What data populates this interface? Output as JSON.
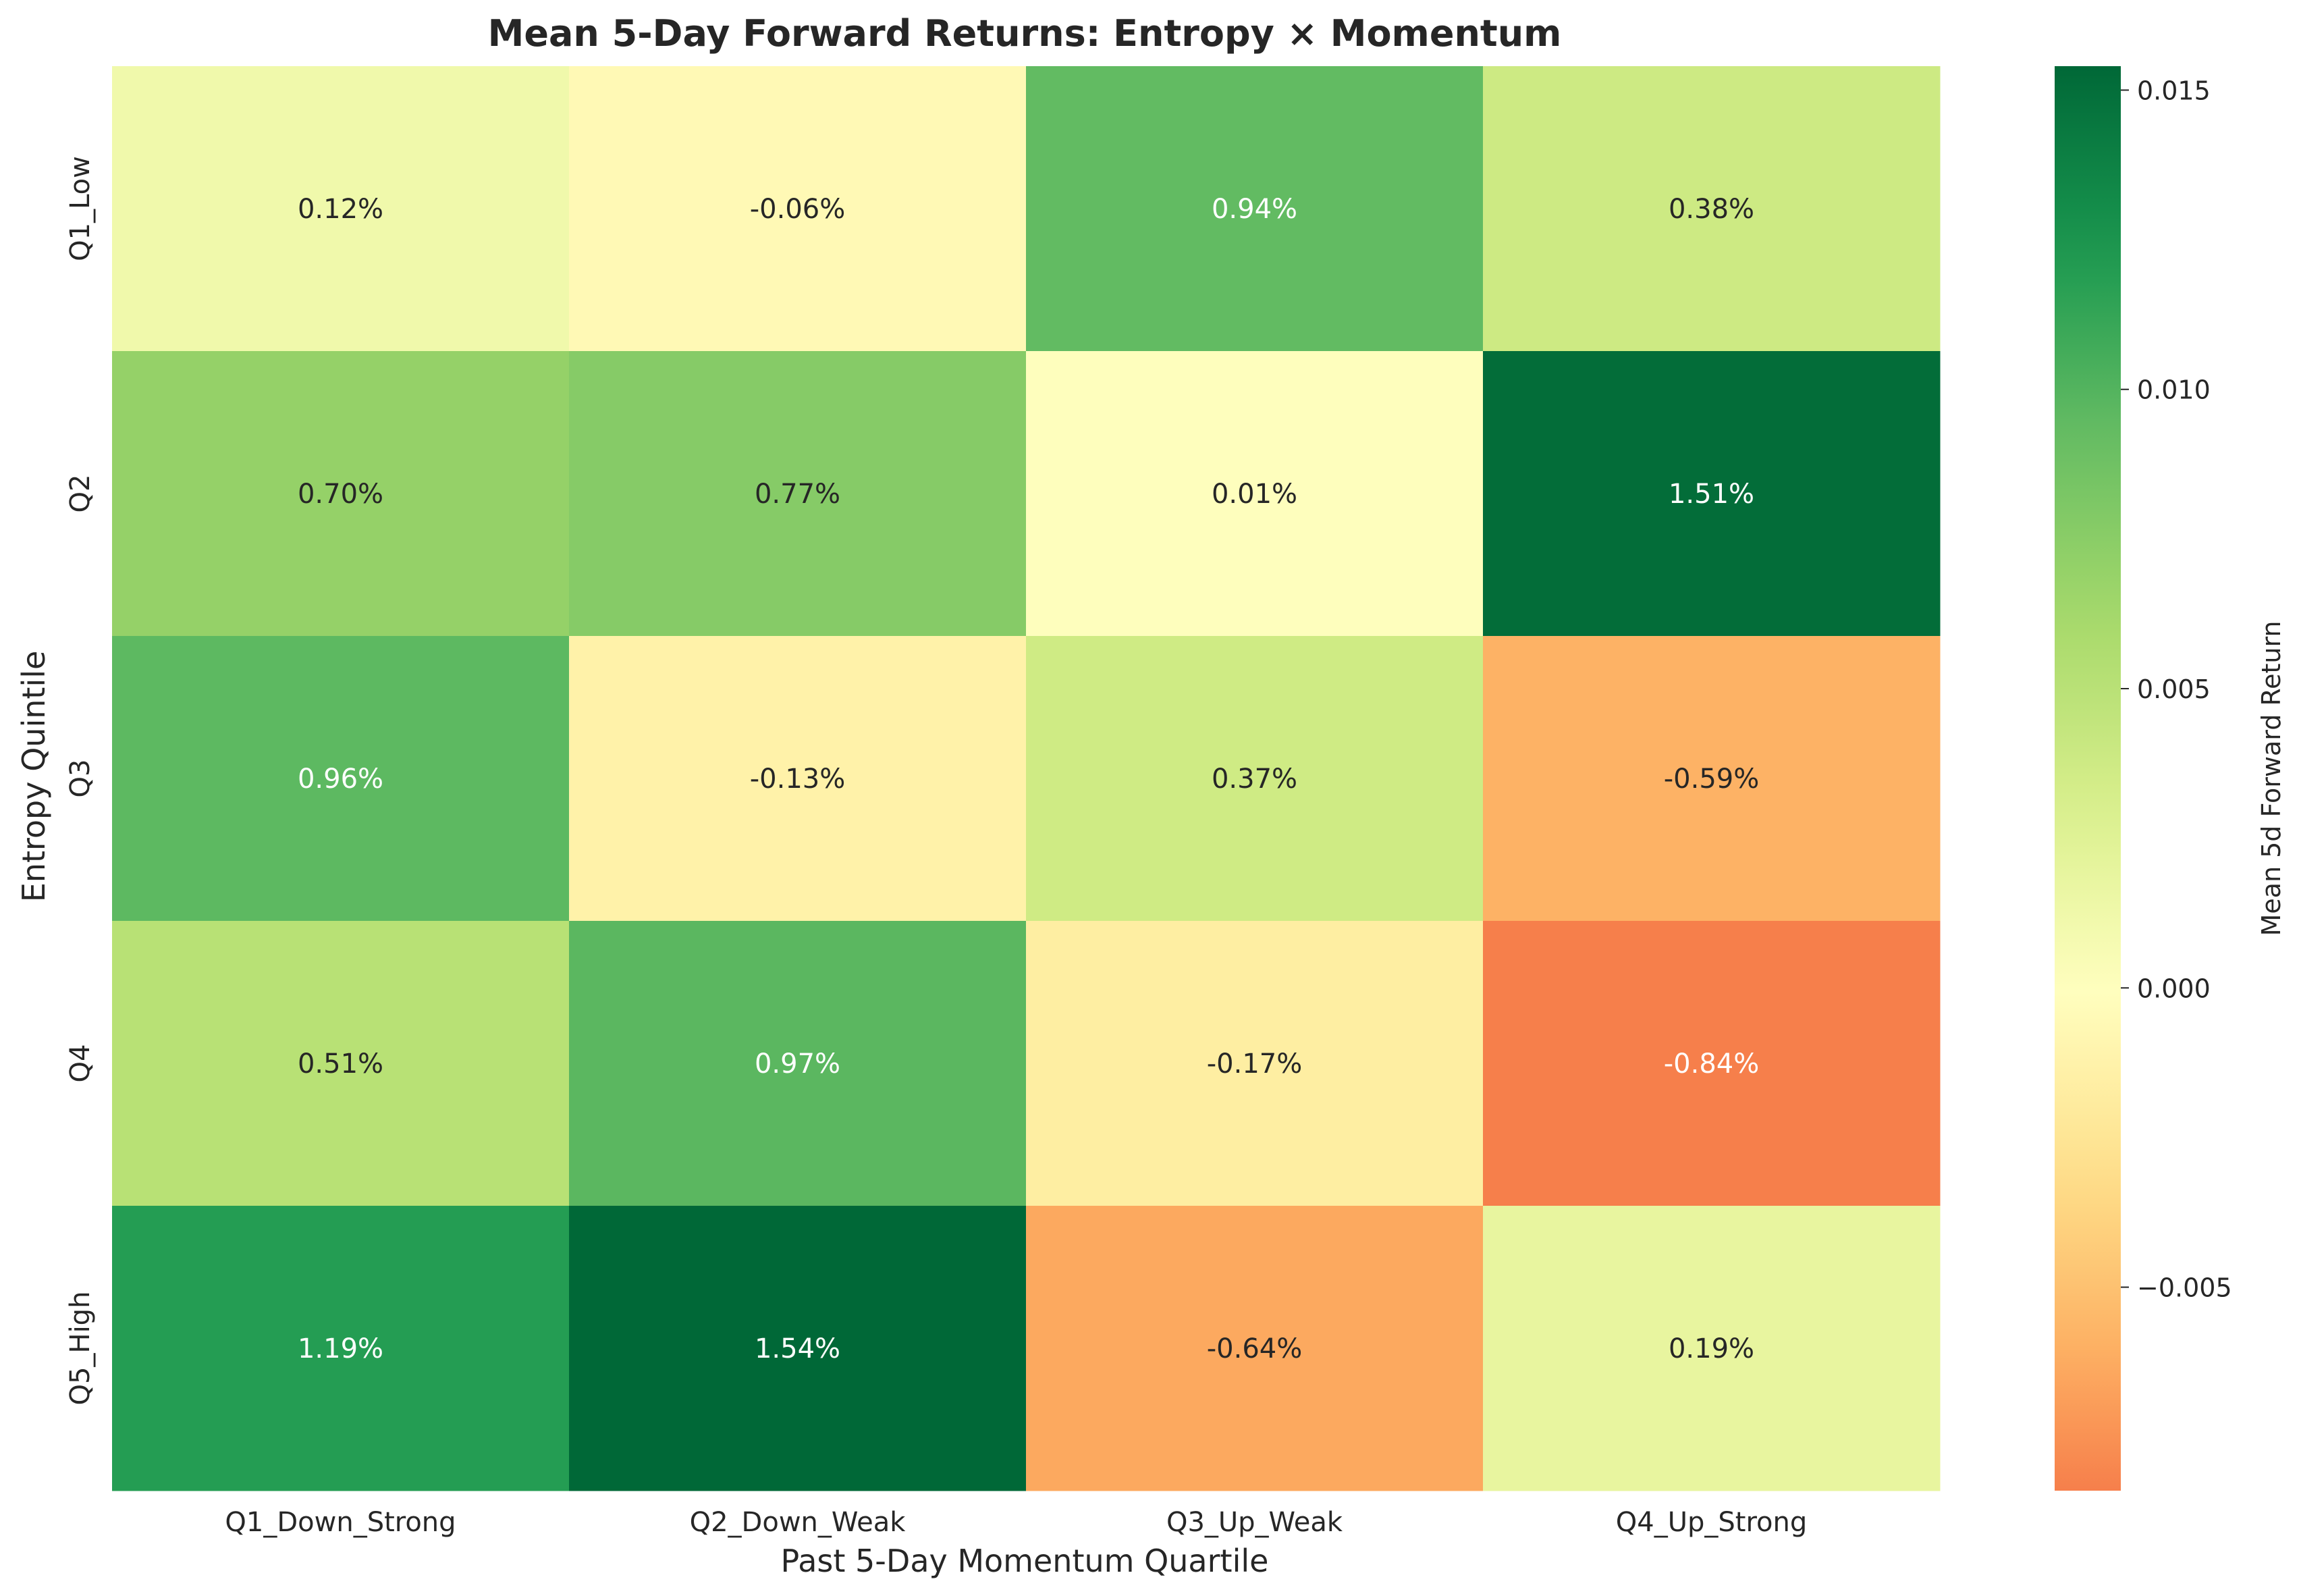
{
  "chart_data": {
    "type": "heatmap",
    "title": "Mean 5-Day Forward Returns: Entropy × Momentum",
    "xlabel": "Past 5-Day Momentum Quartile",
    "ylabel": "Entropy Quintile",
    "x_categories": [
      "Q1_Down_Strong",
      "Q2_Down_Weak",
      "Q3_Up_Weak",
      "Q4_Up_Strong"
    ],
    "y_categories": [
      "Q1_Low",
      "Q2",
      "Q3",
      "Q4",
      "Q5_High"
    ],
    "values": [
      [
        0.0012,
        -0.0006,
        0.0094,
        0.0038
      ],
      [
        0.007,
        0.0077,
        0.0001,
        0.0151
      ],
      [
        0.0096,
        -0.0013,
        0.0037,
        -0.0059
      ],
      [
        0.0051,
        0.0097,
        -0.0017,
        -0.0084
      ],
      [
        0.0119,
        0.0154,
        -0.0064,
        0.0019
      ]
    ],
    "annotations": [
      [
        "0.12%",
        "-0.06%",
        "0.94%",
        "0.38%"
      ],
      [
        "0.70%",
        "0.77%",
        "0.01%",
        "1.51%"
      ],
      [
        "0.96%",
        "-0.13%",
        "0.37%",
        "-0.59%"
      ],
      [
        "0.51%",
        "0.97%",
        "-0.17%",
        "-0.84%"
      ],
      [
        "1.19%",
        "1.54%",
        "-0.64%",
        "0.19%"
      ]
    ],
    "colorbar": {
      "label": "Mean 5d Forward Return",
      "vmin": -0.0084,
      "vmax": 0.0154,
      "center": 0,
      "ticks": [
        -0.005,
        0.0,
        0.005,
        0.01,
        0.015
      ],
      "tick_labels": [
        "−0.005",
        "0.000",
        "0.005",
        "0.010",
        "0.015"
      ],
      "colormap": "RdYlGn"
    },
    "colors": {
      "dark_green": "#006837",
      "yellow_center": "#ffffbf",
      "orange": "#f67c4a",
      "text_dark": "#262626",
      "text_light": "#ffffff"
    }
  }
}
